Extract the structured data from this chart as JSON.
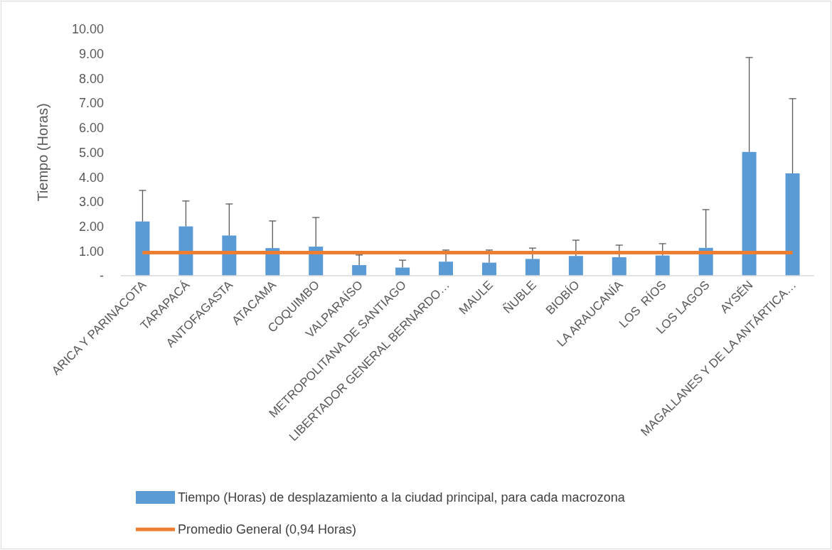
{
  "chart_data": {
    "type": "bar",
    "ylabel": "Tiempo (Horas)",
    "categories": [
      "ARICA Y PARINACOTA",
      "TARAPACÁ",
      "ANTOFAGASTA",
      "ATACAMA",
      "COQUIMBO",
      "VALPARAÍSO",
      "METROPOLITANA DE SANTIAGO",
      "LIBERTADOR GENERAL BERNARDO…",
      "MAULE",
      "ÑUBLE",
      "BIOBÍO",
      "LA ARAUCANÍA",
      "LOS  RÍOS",
      "LOS LAGOS",
      "AYSÉN",
      "MAGALLANES Y DE LA ANTÁRTICA…"
    ],
    "series": [
      {
        "name": "Tiempo (Horas) de desplazamiento a la ciudad principal, para cada macrozona",
        "color": "#5b9bd5",
        "values": [
          2.2,
          2.0,
          1.63,
          1.12,
          1.18,
          0.43,
          0.33,
          0.57,
          0.53,
          0.68,
          0.8,
          0.75,
          0.82,
          1.13,
          5.02,
          4.15
        ],
        "errors": [
          [
            2.2,
            3.46
          ],
          [
            2.0,
            3.03
          ],
          [
            1.63,
            2.91
          ],
          [
            1.12,
            2.22
          ],
          [
            1.18,
            2.36
          ],
          [
            0.43,
            0.84
          ],
          [
            0.33,
            0.63
          ],
          [
            0.57,
            1.04
          ],
          [
            0.53,
            1.04
          ],
          [
            0.68,
            1.12
          ],
          [
            0.8,
            1.44
          ],
          [
            0.75,
            1.24
          ],
          [
            0.82,
            1.3
          ],
          [
            1.13,
            2.68
          ],
          [
            5.02,
            8.85
          ],
          [
            4.15,
            7.18
          ]
        ]
      },
      {
        "name": "Promedio General (0,94 Horas)",
        "type": "line",
        "color": "#ed7d31",
        "values": [
          0.94,
          0.94,
          0.94,
          0.94,
          0.94,
          0.94,
          0.94,
          0.94,
          0.94,
          0.94,
          0.94,
          0.94,
          0.94,
          0.94,
          0.94,
          0.94
        ]
      }
    ],
    "ylim": [
      0,
      10
    ],
    "yticks": [
      {
        "value": 0,
        "label": "-"
      },
      {
        "value": 1,
        "label": "1.00"
      },
      {
        "value": 2,
        "label": "2.00"
      },
      {
        "value": 3,
        "label": "3.00"
      },
      {
        "value": 4,
        "label": "4.00"
      },
      {
        "value": 5,
        "label": "5.00"
      },
      {
        "value": 6,
        "label": "6.00"
      },
      {
        "value": 7,
        "label": "7.00"
      },
      {
        "value": 8,
        "label": "8.00"
      },
      {
        "value": 9,
        "label": "9.00"
      },
      {
        "value": 10,
        "label": "10.00"
      }
    ],
    "grid": false,
    "legend": "bottom"
  }
}
